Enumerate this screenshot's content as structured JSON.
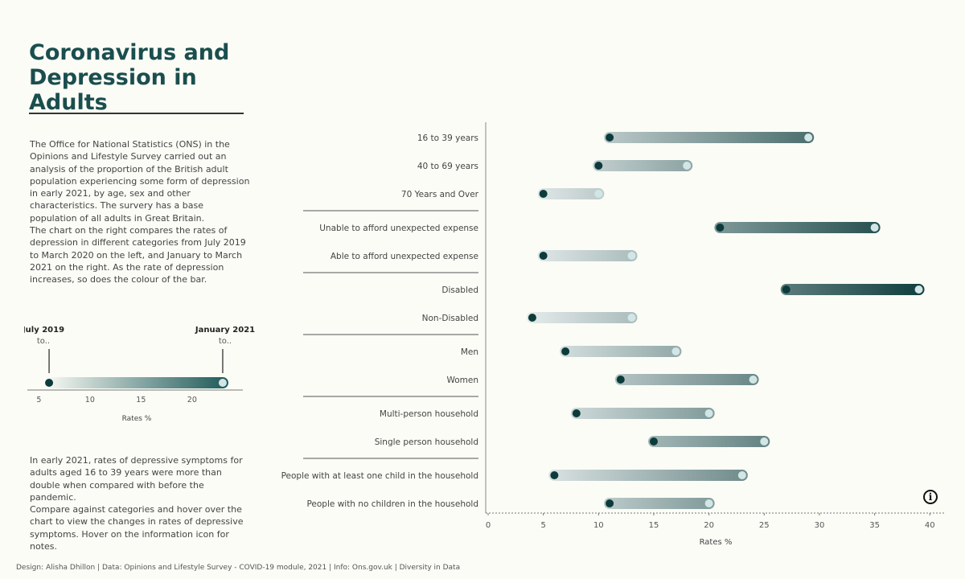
{
  "title": "Coronavirus and Depression in Adults",
  "paragraphs": {
    "p1": "The Office for National Statistics (ONS) in the Opinions and Lifestyle Survey carried out an analysis of the proportion of the British adult population experiencing some form of depression in early 2021, by age, sex and other characteristics. The survery has a base population of all adults in Great Britain.",
    "p2": "The chart on the right compares the rates of depression in different categories from July 2019 to March 2020 on the left, and January to March 2021 on the right. As the rate of depression increases, so does the colour of the bar.",
    "p3": "In early 2021, rates of depressive symptoms for adults aged 16 to 39 years were more than double when compared with before the pandemic.",
    "p4": "Compare against categories and hover over the chart to view the changes in rates of depressive symptoms. Hover on the information icon for notes."
  },
  "legend": {
    "start_label": "July 2019",
    "start_sub": "to..",
    "end_label": "January 2021",
    "end_sub": "to..",
    "start_value": 6,
    "end_value": 23,
    "ticks": [
      5,
      10,
      15,
      20
    ],
    "range": [
      4.5,
      24.5
    ],
    "xlabel": "Rates %"
  },
  "info_icon": {
    "name": "info-icon",
    "glyph": "i"
  },
  "footer": "Design: Alisha Dhillon | Data: Opinions and Lifestyle Survey - COVID-19 module, 2021 | Info: Ons.gov.uk | Diversity in Data",
  "colors": {
    "dark": "#0d3b3b",
    "light": "#e8eeee",
    "dot_start": "#0d3b3b",
    "dot_end": "#d2e6e6",
    "title": "#1b4e4e"
  },
  "chart_data": {
    "type": "dumbbell",
    "title": "",
    "xlabel": "Rates %",
    "ylabel": "",
    "xlim": [
      0,
      41
    ],
    "xticks": [
      0,
      5,
      10,
      15,
      20,
      25,
      30,
      35,
      40
    ],
    "grid": false,
    "series_labels": [
      "July 2019 to March 2020",
      "January to March 2021"
    ],
    "groups": [
      {
        "rows": [
          {
            "category": "16 to 39 years",
            "before": 11,
            "after": 29
          },
          {
            "category": "40 to 69 years",
            "before": 10,
            "after": 18
          },
          {
            "category": "70 Years and Over",
            "before": 5,
            "after": 10
          }
        ]
      },
      {
        "rows": [
          {
            "category": "Unable to afford unexpected expense",
            "before": 21,
            "after": 35
          },
          {
            "category": "Able to afford unexpected expense",
            "before": 5,
            "after": 13
          }
        ]
      },
      {
        "rows": [
          {
            "category": "Disabled",
            "before": 27,
            "after": 39
          },
          {
            "category": "Non-Disabled",
            "before": 4,
            "after": 13
          }
        ]
      },
      {
        "rows": [
          {
            "category": "Men",
            "before": 7,
            "after": 17
          },
          {
            "category": "Women",
            "before": 12,
            "after": 24
          }
        ]
      },
      {
        "rows": [
          {
            "category": "Multi-person household",
            "before": 8,
            "after": 20
          },
          {
            "category": "Single person household",
            "before": 15,
            "after": 25
          }
        ]
      },
      {
        "rows": [
          {
            "category": "People with at least one child in the household",
            "before": 6,
            "after": 23
          },
          {
            "category": "People with no children in the household",
            "before": 11,
            "after": 20
          }
        ]
      }
    ]
  }
}
